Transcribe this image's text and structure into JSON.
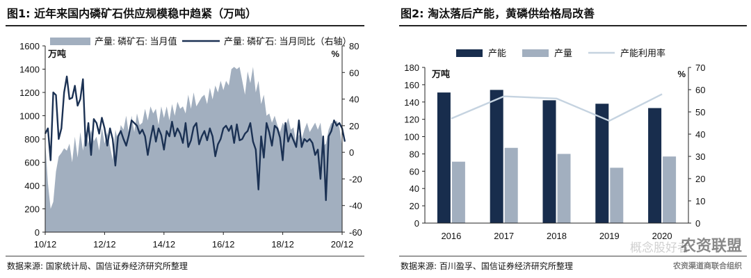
{
  "figures": [
    {
      "title": "图1: 近年来国内磷矿石供应规模稳中趋紧（万吨）",
      "source": "数据来源: 国家统计局、国信证券经济研究所整理",
      "left_unit": "万吨",
      "right_unit": "%"
    },
    {
      "title": "图2: 淘汰落后产能，黄磷供给格局改善",
      "source": "数据来源: 百川盈孚、国信证券经济研究所整理",
      "left_unit": "万吨",
      "right_unit": "%"
    }
  ],
  "chart_data": [
    {
      "type": "area",
      "series": [
        {
          "name": "产量: 磷矿石: 当月值",
          "type": "area",
          "axis": "left",
          "color": "#a2afbf",
          "values": [
            780,
            420,
            200,
            260,
            520,
            650,
            680,
            720,
            700,
            760,
            600,
            820,
            640,
            860,
            700,
            880,
            760,
            880,
            780,
            820,
            700,
            900,
            760,
            860,
            740,
            620,
            880,
            780,
            920,
            880,
            1000,
            840,
            1000,
            860,
            1020,
            920,
            940,
            1060,
            960,
            1080,
            1020,
            1060,
            920,
            1080,
            980,
            1080,
            960,
            1100,
            1000,
            1120,
            1060,
            1080,
            1020,
            1180,
            1060,
            1200,
            1080,
            1120,
            1160,
            1180,
            1100,
            1240,
            1140,
            1260,
            1200,
            1300,
            1220,
            1300,
            1260,
            1400,
            1420,
            1400,
            1420,
            1300,
            1180,
            1380,
            1280,
            1420,
            1200,
            1300,
            1100,
            1180,
            1000,
            1020,
            940,
            1000,
            920,
            860,
            940,
            900,
            980,
            880,
            900,
            760,
            840,
            800,
            880,
            940,
            860,
            900,
            940,
            880,
            940,
            740,
            760,
            880,
            940,
            920,
            960,
            900,
            740
          ]
        },
        {
          "name": "产量: 磷矿石: 当月同比（右轴）",
          "type": "line",
          "axis": "right",
          "color": "#1b3153",
          "values": [
            14,
            18,
            -6,
            45,
            43,
            10,
            18,
            45,
            57,
            40,
            41,
            50,
            35,
            40,
            55,
            5,
            22,
            -2,
            25,
            22,
            14,
            26,
            18,
            5,
            18,
            10,
            -10,
            12,
            16,
            10,
            5,
            13,
            24,
            22,
            20,
            14,
            17,
            12,
            -2,
            10,
            20,
            8,
            18,
            13,
            2,
            16,
            12,
            23,
            12,
            18,
            14,
            7,
            22,
            4,
            9,
            19,
            22,
            6,
            12,
            16,
            9,
            18,
            12,
            -3,
            6,
            10,
            18,
            20,
            16,
            20,
            7,
            21,
            9,
            10,
            14,
            16,
            22,
            8,
            2,
            -28,
            12,
            -4,
            22,
            15,
            5,
            20,
            18,
            11,
            -6,
            22,
            8,
            14,
            9,
            4,
            24,
            4,
            10,
            8,
            10,
            7,
            -2,
            2,
            -20,
            12,
            -36,
            12,
            16,
            24,
            20,
            22,
            18,
            8
          ]
        }
      ],
      "xlabels": [
        "10/12",
        "12/12",
        "14/12",
        "16/12",
        "18/12",
        "20/12"
      ],
      "left_ylim": [
        0,
        1600
      ],
      "left_ticks": [
        "0",
        "200",
        "400",
        "600",
        "800",
        "1000",
        "1200",
        "1400",
        "1600"
      ],
      "right_ylim": [
        -60,
        80
      ],
      "right_ticks": [
        "-60",
        "-40",
        "-20",
        "0",
        "20",
        "40",
        "60",
        "80"
      ],
      "legend": "top",
      "grid": false
    },
    {
      "type": "bar",
      "categories": [
        "2016",
        "2017",
        "2018",
        "2019",
        "2020"
      ],
      "series": [
        {
          "name": "产能",
          "type": "bar",
          "axis": "left",
          "color": "#182d4d",
          "values": [
            151,
            154,
            142,
            138,
            133
          ]
        },
        {
          "name": "产量",
          "type": "bar",
          "axis": "left",
          "color": "#a2afbf",
          "values": [
            71,
            87,
            80,
            64,
            77
          ]
        },
        {
          "name": "产能利用率",
          "type": "line",
          "axis": "right",
          "color": "#c5d3e0",
          "values": [
            47,
            57,
            56,
            46,
            58
          ]
        }
      ],
      "left_ylim": [
        0,
        180
      ],
      "left_ticks": [
        "0",
        "20",
        "40",
        "60",
        "80",
        "100",
        "120",
        "140",
        "160",
        "180"
      ],
      "right_ylim": [
        0,
        70
      ],
      "right_ticks": [
        "0",
        "10",
        "20",
        "30",
        "40",
        "50",
        "60",
        "70"
      ],
      "legend": "top",
      "grid": false
    }
  ],
  "watermark": {
    "faint_text": "概念股好者",
    "main_text": "农资联盟",
    "sub_text": "农资渠道商联合组织"
  }
}
